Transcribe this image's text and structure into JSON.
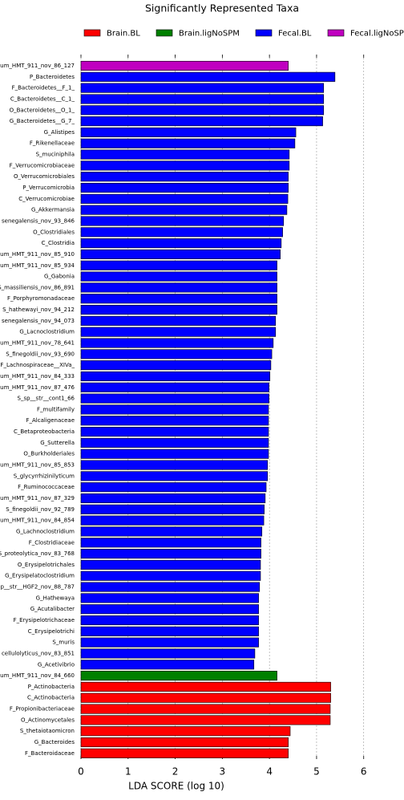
{
  "chart_data": {
    "type": "barh",
    "title": "Significantly Represented Taxa",
    "xlabel": "LDA SCORE (log 10)",
    "categories": [
      "um_HMT_911_nov_86_127",
      "P_Bacteroidetes",
      "F_Bacteroidetes__F_1_",
      "C_Bacteroidetes__C_1_",
      "O_Bacteroidetes__O_1_",
      "G_Bacteroidetes__G_7_",
      "G_Alistipes",
      "F_Rikenellaceae",
      "S_muciniphila",
      "F_Verrucomicrobiaceae",
      "O_Verrucomicrobiales",
      "P_Verrucomicrobia",
      "C_Verrucomicrobiae",
      "G_Akkermansia",
      "senegalensis_nov_93_846",
      "O_Clostridiales",
      "C_Clostridia",
      "um_HMT_911_nov_85_910",
      "um_HMT_911_nov_85_934",
      "G_Gabonia",
      "S_massiliensis_nov_86_891",
      "F_Porphyromonadaceae",
      "S_hathewayi_nov_94_212",
      "senegalensis_nov_94_073",
      "G_Lacnoclostridium",
      "um_HMT_911_nov_78_641",
      "S_finegoldii_nov_93_690",
      "F_Lachnospiraceae__XIVa_",
      "um_HMT_911_nov_84_333",
      "um_HMT_911_nov_87_476",
      "S_sp__str__cont1_66",
      "F_multifamily",
      "F_Alcaligenaceae",
      "C_Betaproteobacteria",
      "G_Sutterella",
      "O_Burkholderiales",
      "um_HMT_911_nov_85_853",
      "S_glycyrrhizinilyticum",
      "F_Ruminococcaceae",
      "um_HMT_911_nov_87_329",
      "S_finegoldii_nov_92_789",
      "um_HMT_911_nov_84_854",
      "G_Lachnoclostridium",
      "F_Clostridiaceae",
      "S_proteolytica_nov_83_768",
      "O_Erysipelotrichales",
      "G_Erysipelatoclostridium",
      "p__str__HGF2_nov_88_787",
      "G_Hathewaya",
      "G_Acutalibacter",
      "F_Erysipelotrichaceae",
      "C_Erysipelotrichi",
      "S_muris",
      "cellulolyticus_nov_83_851",
      "G_Acetivibrio",
      "um_HMT_911_nov_84_660",
      "P_Actinobacteria",
      "C_Actinobacteria",
      "F_Propionibacteriaceae",
      "O_Actinomycetales",
      "S_thetaiotaomicron",
      "G_Bacteroides",
      "F_Bacteroidaceae"
    ],
    "series": [
      {
        "name": "Brain.BL",
        "color": "#ff0000",
        "values": [
          null,
          null,
          null,
          null,
          null,
          null,
          null,
          null,
          null,
          null,
          null,
          null,
          null,
          null,
          null,
          null,
          null,
          null,
          null,
          null,
          null,
          null,
          null,
          null,
          null,
          null,
          null,
          null,
          null,
          null,
          null,
          null,
          null,
          null,
          null,
          null,
          null,
          null,
          null,
          null,
          null,
          null,
          null,
          null,
          null,
          null,
          null,
          null,
          null,
          null,
          null,
          null,
          null,
          null,
          null,
          null,
          5.3,
          5.3,
          5.29,
          5.29,
          4.44,
          4.4,
          4.4
        ]
      },
      {
        "name": "Brain.ligNoSPM",
        "color": "#008000",
        "values": [
          null,
          null,
          null,
          null,
          null,
          null,
          null,
          null,
          null,
          null,
          null,
          null,
          null,
          null,
          null,
          null,
          null,
          null,
          null,
          null,
          null,
          null,
          null,
          null,
          null,
          null,
          null,
          null,
          null,
          null,
          null,
          null,
          null,
          null,
          null,
          null,
          null,
          null,
          null,
          null,
          null,
          null,
          null,
          null,
          null,
          null,
          null,
          null,
          null,
          null,
          null,
          null,
          null,
          null,
          null,
          4.16,
          null,
          null,
          null,
          null,
          null,
          null,
          null
        ]
      },
      {
        "name": "Fecal.BL",
        "color": "#0000ff",
        "values": [
          null,
          5.39,
          5.15,
          5.15,
          5.15,
          5.13,
          4.56,
          4.54,
          4.42,
          4.42,
          4.4,
          4.4,
          4.39,
          4.37,
          4.3,
          4.28,
          4.25,
          4.23,
          4.16,
          4.16,
          4.16,
          4.16,
          4.16,
          4.13,
          4.13,
          4.08,
          4.05,
          4.03,
          4.01,
          3.99,
          3.99,
          3.98,
          3.98,
          3.98,
          3.98,
          3.98,
          3.96,
          3.96,
          3.93,
          3.91,
          3.89,
          3.88,
          3.84,
          3.82,
          3.82,
          3.81,
          3.81,
          3.79,
          3.77,
          3.77,
          3.77,
          3.77,
          3.77,
          3.69,
          3.67,
          null,
          null,
          null,
          null,
          null,
          null,
          null,
          null
        ]
      },
      {
        "name": "Fecal.ligNoSPM",
        "color": "#c000c0",
        "values": [
          4.4,
          null,
          null,
          null,
          null,
          null,
          null,
          null,
          null,
          null,
          null,
          null,
          null,
          null,
          null,
          null,
          null,
          null,
          null,
          null,
          null,
          null,
          null,
          null,
          null,
          null,
          null,
          null,
          null,
          null,
          null,
          null,
          null,
          null,
          null,
          null,
          null,
          null,
          null,
          null,
          null,
          null,
          null,
          null,
          null,
          null,
          null,
          null,
          null,
          null,
          null,
          null,
          null,
          null,
          null,
          null,
          null,
          null,
          null,
          null,
          null,
          null,
          null
        ]
      }
    ],
    "xlim": [
      0,
      6.6
    ],
    "xticks": [
      0,
      1,
      2,
      3,
      4,
      5,
      6
    ],
    "grid": true
  }
}
